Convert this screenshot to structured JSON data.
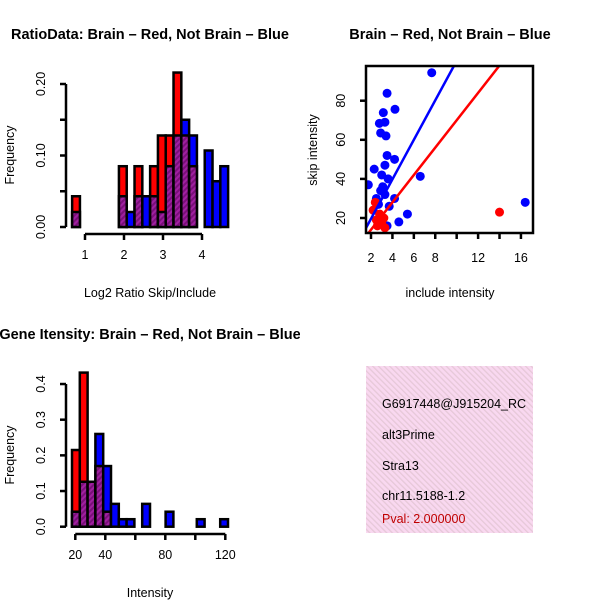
{
  "colors": {
    "brain": "#ff0000",
    "not_brain": "#0000ff",
    "overlap": "#a020a0",
    "pval": "#c00000",
    "info_bg": "#f9d8f0"
  },
  "chart_data": [
    {
      "type": "bar",
      "title": "RatioData: Brain – Red, Not Brain – Blue",
      "xlabel": "Log2 Ratio Skip/Include",
      "ylabel": "Frequency",
      "xticks": [
        1,
        2,
        3,
        4
      ],
      "xtick_labels": [
        "1",
        "2",
        "3",
        "4"
      ],
      "yticks": [
        0,
        0.05,
        0.1,
        0.15,
        0.2
      ],
      "ytick_labels": [
        "0.00",
        "",
        "0.10",
        "",
        "0.20"
      ],
      "bin_start": 0.67,
      "bin_width": 0.2,
      "series": [
        {
          "name": "Brain",
          "values": [
            0.043,
            0,
            0,
            0,
            0,
            0,
            0.085,
            0,
            0.085,
            0,
            0.085,
            0.128,
            0.128,
            0.216,
            0.128,
            0.085,
            0,
            0,
            0,
            0
          ]
        },
        {
          "name": "Not Brain",
          "values": [
            0.021,
            0,
            0,
            0,
            0,
            0,
            0.043,
            0.021,
            0.043,
            0.043,
            0.043,
            0.021,
            0.085,
            0.128,
            0.15,
            0.128,
            0,
            0.107,
            0.064,
            0.085
          ]
        }
      ]
    },
    {
      "type": "scatter",
      "title": "Brain – Red, Not Brain – Blue",
      "xlabel": "include intensity",
      "ylabel": "skip intensity",
      "xlim": [
        1.5,
        17.1
      ],
      "ylim": [
        12.3,
        97.7
      ],
      "xticks": [
        2,
        4,
        6,
        8,
        10,
        12,
        14,
        16
      ],
      "xtick_labels": [
        "2",
        "4",
        "6",
        "8",
        "",
        "12",
        "",
        "16"
      ],
      "yticks": [
        20,
        40,
        60,
        80
      ],
      "ytick_labels": [
        "20",
        "40",
        "60",
        "80"
      ],
      "series": [
        {
          "name": "Not Brain",
          "points": [
            [
              7.67,
              94.3
            ],
            [
              3.5,
              83.8
            ],
            [
              3.15,
              73.9
            ],
            [
              4.24,
              75.6
            ],
            [
              2.78,
              68.4
            ],
            [
              3.3,
              69
            ],
            [
              2.9,
              63.5
            ],
            [
              3.4,
              62
            ],
            [
              3.5,
              52
            ],
            [
              4.2,
              50
            ],
            [
              3.3,
              47
            ],
            [
              2.3,
              45
            ],
            [
              3.0,
              42
            ],
            [
              3.6,
              40
            ],
            [
              6.6,
              41.3
            ],
            [
              1.75,
              37
            ],
            [
              2.9,
              34
            ],
            [
              3.3,
              32
            ],
            [
              2.5,
              30
            ],
            [
              4.2,
              30
            ],
            [
              3.7,
              26
            ],
            [
              5.4,
              22
            ],
            [
              16.4,
              28
            ],
            [
              4.6,
              18
            ],
            [
              3.5,
              16
            ],
            [
              2.9,
              19
            ],
            [
              3.1,
              36
            ],
            [
              2.7,
              27
            ]
          ],
          "fit": {
            "slope": 10.1,
            "intercept": -0.6
          }
        },
        {
          "name": "Brain",
          "points": [
            [
              14.0,
              23
            ],
            [
              2.4,
              28
            ],
            [
              2.8,
              22
            ],
            [
              3.0,
              18
            ],
            [
              2.6,
              16
            ],
            [
              3.2,
              20
            ],
            [
              2.2,
              24
            ],
            [
              3.3,
              15
            ],
            [
              2.5,
              19
            ]
          ],
          "fit": {
            "slope": 7.0,
            "intercept": 0
          }
        }
      ]
    },
    {
      "type": "bar",
      "title": "Gene Itensity: Brain – Red, Not Brain – Blue",
      "xlabel": "Intensity",
      "ylabel": "Frequency",
      "xticks": [
        20,
        40,
        60,
        80,
        100,
        120
      ],
      "xtick_labels": [
        "20",
        "40",
        "",
        "80",
        "",
        "120"
      ],
      "yticks": [
        0,
        0.1,
        0.2,
        0.3,
        0.4
      ],
      "ytick_labels": [
        "0.0",
        "0.1",
        "0.2",
        "0.3",
        "0.4"
      ],
      "bin_start": 17.8,
      "bin_width": 5.2,
      "series": [
        {
          "name": "Brain",
          "values": [
            0.215,
            0.432,
            0.126,
            0.17,
            0.042,
            0,
            0,
            0,
            0,
            0,
            0,
            0,
            0,
            0,
            0,
            0,
            0,
            0,
            0,
            0
          ]
        },
        {
          "name": "Not Brain",
          "values": [
            0.042,
            0.126,
            0.126,
            0.26,
            0.17,
            0.064,
            0.021,
            0.021,
            0,
            0.064,
            0,
            0,
            0.042,
            0,
            0,
            0,
            0.021,
            0,
            0,
            0.021
          ]
        }
      ]
    }
  ],
  "info": {
    "id": "G6917448@J915204_RC",
    "type": "alt3Prime",
    "gene": "Stra13",
    "location": "chr11.5188-1.2",
    "pval": "Pval: 2.000000"
  }
}
